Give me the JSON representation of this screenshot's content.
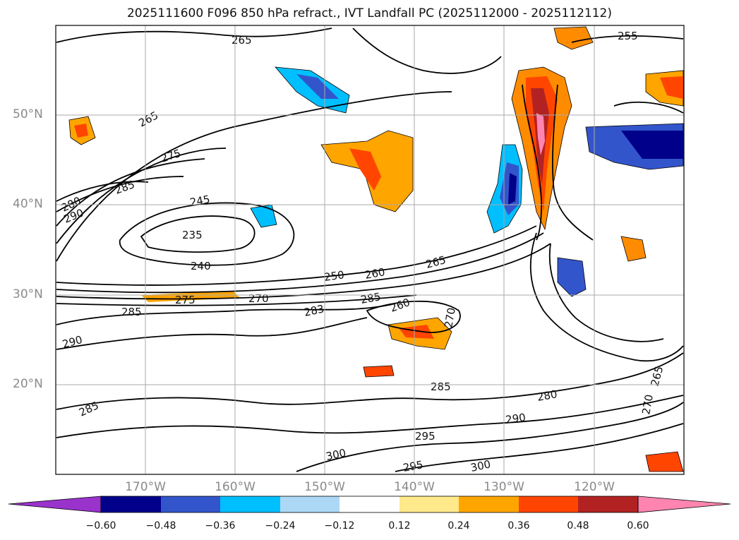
{
  "title": "2025111600 F096 850 hPa refract., IVT Landfall PC (2025112000 - 2025112112)",
  "lat_labels": [
    "50°N",
    "40°N",
    "30°N",
    "20°N"
  ],
  "lon_labels": [
    "170°W",
    "160°W",
    "150°W",
    "140°W",
    "130°W",
    "120°W"
  ],
  "contour_labels": [
    "265",
    "255",
    "265",
    "275",
    "285",
    "280",
    "290",
    "245",
    "235",
    "240",
    "250",
    "260",
    "265",
    "270",
    "285",
    "283",
    "260",
    "270",
    "275",
    "285",
    "290",
    "285",
    "285",
    "280",
    "290",
    "295",
    "300",
    "295",
    "300",
    "265",
    "270"
  ],
  "colorbar": {
    "ticks": [
      "−0.60",
      "−0.48",
      "−0.36",
      "−0.24",
      "−0.12",
      "0.12",
      "0.24",
      "0.36",
      "0.48",
      "0.60"
    ],
    "colors": [
      "#9933cc",
      "#00008b",
      "#3355cc",
      "#00bfff",
      "#add8f5",
      "#ffffff",
      "#ffe98a",
      "#ffa500",
      "#ff4500",
      "#b22222",
      "#ff85b0"
    ]
  },
  "palette": {
    "contour": "#000000",
    "grid": "#a9a9a9",
    "axis_label": "#8a8a8a"
  }
}
